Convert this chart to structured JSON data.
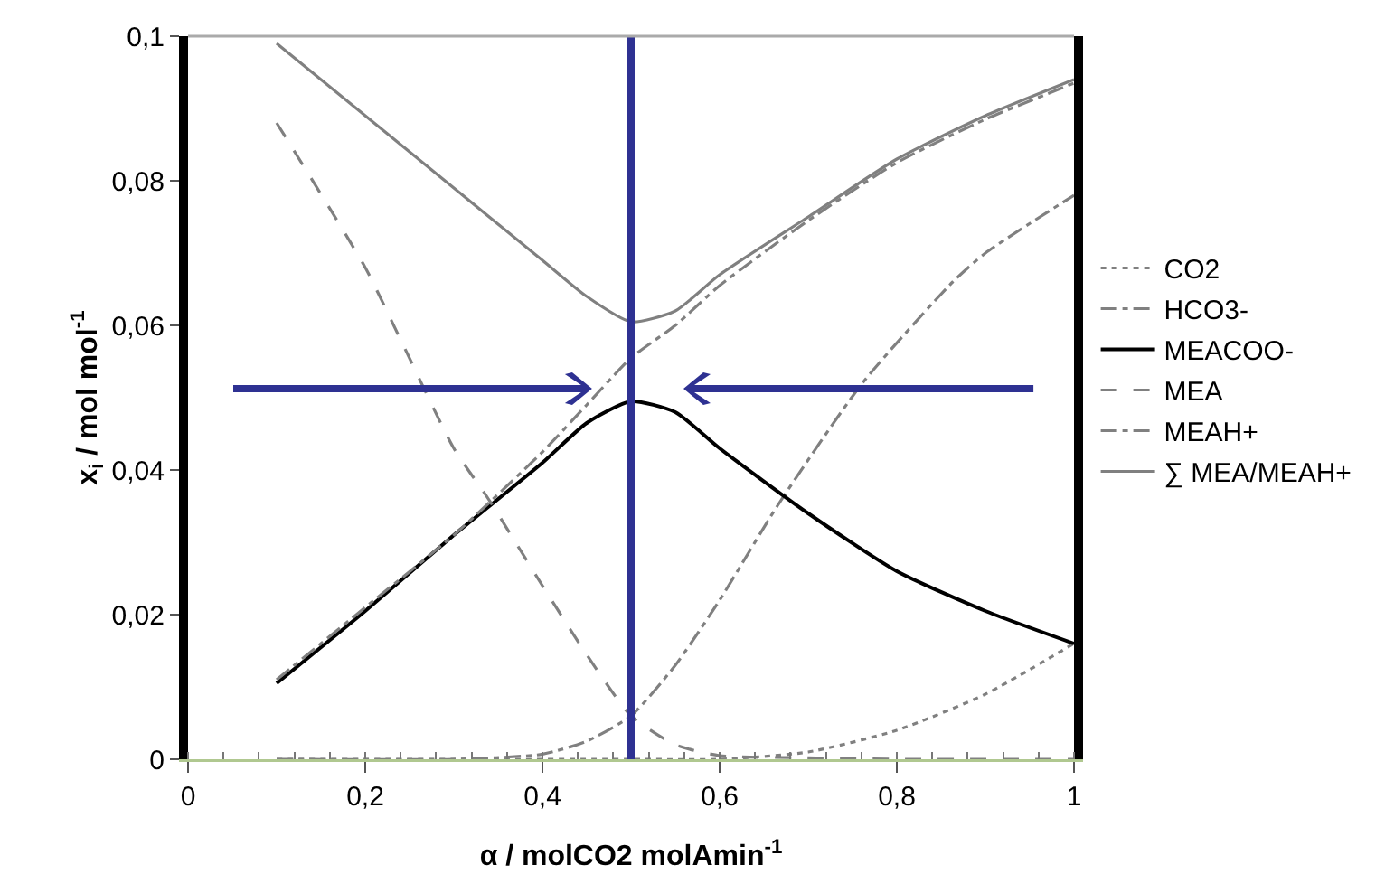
{
  "chart_data": {
    "type": "line",
    "xlabel": "α / molCO2 molAmin$^{-1}$",
    "ylabel": "x$_{i}$ / mol mol$^{-1}$",
    "xlim": [
      0,
      1
    ],
    "xticks": [
      0,
      {
        "value": 0.2,
        "label": "0,2"
      },
      {
        "value": 0.4,
        "label": "0,4"
      },
      {
        "value": 0.6,
        "label": "0,6"
      },
      {
        "value": 0.8,
        "label": "0,8"
      },
      1
    ],
    "ylim": [
      0,
      0.1
    ],
    "yticks": [
      0,
      {
        "value": 0.02,
        "label": "0,02"
      },
      {
        "value": 0.04,
        "label": "0,04"
      },
      {
        "value": 0.06,
        "label": "0,06"
      },
      {
        "value": 0.08,
        "label": "0,08"
      },
      {
        "value": 0.1,
        "label": "0,1"
      }
    ],
    "grid": false,
    "legend": "right",
    "marker": "none",
    "ref_lines": [
      {
        "axis": "x",
        "value": 0.5,
        "color": "#2e3192"
      }
    ],
    "series": [
      {
        "name": "CO2",
        "color": "#808080",
        "line_style": "dotted",
        "x": [
          0.1,
          0.3,
          0.5,
          0.6,
          0.7,
          0.8,
          0.9,
          1.0
        ],
        "values": [
          0,
          0,
          0,
          0,
          0.001,
          0.004,
          0.009,
          0.016
        ]
      },
      {
        "name": "HCO3-",
        "color": "#808080",
        "line_style": "dashdot",
        "x": [
          0.1,
          0.3,
          0.4,
          0.45,
          0.5,
          0.55,
          0.6,
          0.665,
          0.761,
          0.863,
          0.9,
          1.0
        ],
        "values": [
          0,
          0,
          0.0007,
          0.0025,
          0.006,
          0.013,
          0.022,
          0.035,
          0.052,
          0.066,
          0.07,
          0.078
        ]
      },
      {
        "name": "MEACOO-",
        "color": "#000000",
        "line_style": "solid",
        "x": [
          0.1,
          0.2,
          0.3,
          0.4,
          0.45,
          0.5,
          0.55,
          0.6,
          0.7,
          0.8,
          0.9,
          1.0
        ],
        "values": [
          0.0105,
          0.0205,
          0.031,
          0.041,
          0.0465,
          0.0495,
          0.048,
          0.043,
          0.034,
          0.026,
          0.0205,
          0.016
        ]
      },
      {
        "name": "MEA",
        "color": "#808080",
        "line_style": "dashed",
        "x": [
          0.1,
          0.2,
          0.24,
          0.3,
          0.339,
          0.4,
          0.447,
          0.5,
          0.55,
          0.6,
          0.7,
          0.8,
          1.0
        ],
        "values": [
          0.088,
          0.068,
          0.058,
          0.043,
          0.036,
          0.024,
          0.015,
          0.006,
          0.002,
          0.0005,
          0.0002,
          0,
          0
        ]
      },
      {
        "name": "MEAH+",
        "color": "#808080",
        "line_style": "dashdot",
        "x": [
          0.1,
          0.2,
          0.3,
          0.4,
          0.45,
          0.5,
          0.55,
          0.6,
          0.7,
          0.8,
          0.9,
          1.0
        ],
        "values": [
          0.011,
          0.021,
          0.031,
          0.0425,
          0.049,
          0.0555,
          0.06,
          0.0655,
          0.0745,
          0.0825,
          0.0885,
          0.0935
        ]
      },
      {
        "name": "∑ MEA/MEAH+",
        "color": "#808080",
        "line_style": "solid",
        "x": [
          0.1,
          0.2,
          0.3,
          0.4,
          0.45,
          0.5,
          0.55,
          0.6,
          0.7,
          0.8,
          0.9,
          1.0
        ],
        "values": [
          0.099,
          0.089,
          0.079,
          0.069,
          0.064,
          0.0605,
          0.062,
          0.067,
          0.075,
          0.083,
          0.089,
          0.094
        ]
      }
    ]
  }
}
